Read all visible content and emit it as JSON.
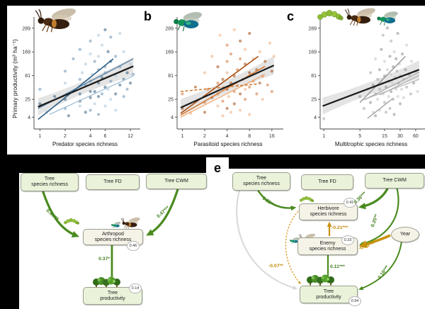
{
  "figure": {
    "y_axis_label": "Primary productivity (m³ ha⁻¹)",
    "panels": {
      "b": "b",
      "c": "c",
      "e": "e"
    }
  },
  "colors": {
    "green_path": "#4a8b1f",
    "gold_path": "#c8920a",
    "gray_path": "#d8d8d8",
    "black_line": "#1a1a1a"
  },
  "chart_data": [
    {
      "type": "scatter",
      "panel": "a",
      "xlabel": "Predator species richness",
      "ylabel": "Primary productivity (m³ ha⁻¹)",
      "x_scale": "log2",
      "y_scale": "sqrt",
      "x_ticks": [
        1,
        2,
        4,
        6,
        12
      ],
      "y_ticks": [
        4,
        25,
        81,
        169,
        289
      ],
      "x_domain": [
        0.85,
        14
      ],
      "y_domain": [
        0,
        330
      ],
      "point_colors": [
        "#2f5d80",
        "#6b92b2",
        "#a9c4d8"
      ],
      "ci_band": {
        "x1": 0.95,
        "y1": 14,
        "x2": 13,
        "y2": 112,
        "color": "#c9c9c9"
      },
      "lines": [
        {
          "x1": 1.3,
          "y1": 6,
          "x2": 13,
          "y2": 80,
          "color": "#a3c0d6",
          "w": 1.3
        },
        {
          "x1": 0.95,
          "y1": 12,
          "x2": 13,
          "y2": 140,
          "color": "#5e88ab",
          "w": 1.5
        },
        {
          "x1": 0.95,
          "y1": 2.6,
          "x2": 7.5,
          "y2": 140,
          "color": "#2d5f86",
          "w": 1.6
        },
        {
          "x1": 0.95,
          "y1": 14,
          "x2": 13,
          "y2": 112,
          "color": "#1a1a1a",
          "w": 2.2
        }
      ],
      "points": [
        [
          1,
          18,
          0
        ],
        [
          1,
          45,
          1
        ],
        [
          1.2,
          8,
          2
        ],
        [
          1.5,
          30,
          0
        ],
        [
          2,
          12,
          1
        ],
        [
          2,
          60,
          2
        ],
        [
          2,
          25,
          0
        ],
        [
          2,
          95,
          1
        ],
        [
          2.2,
          5,
          0
        ],
        [
          2.5,
          40,
          2
        ],
        [
          2.5,
          140,
          1
        ],
        [
          3,
          22,
          0
        ],
        [
          3,
          70,
          1
        ],
        [
          3,
          15,
          2
        ],
        [
          3,
          180,
          1
        ],
        [
          3,
          35,
          0
        ],
        [
          3.2,
          90,
          2
        ],
        [
          3.5,
          55,
          1
        ],
        [
          3.5,
          8,
          0
        ],
        [
          3.5,
          120,
          2
        ],
        [
          4,
          28,
          0
        ],
        [
          4,
          65,
          1
        ],
        [
          4,
          160,
          2
        ],
        [
          4,
          10,
          1
        ],
        [
          4,
          40,
          0
        ],
        [
          4,
          220,
          1
        ],
        [
          4.2,
          85,
          2
        ],
        [
          4.5,
          40,
          0
        ],
        [
          4.5,
          130,
          1
        ],
        [
          4.5,
          18,
          2
        ],
        [
          5,
          60,
          0
        ],
        [
          5,
          100,
          1
        ],
        [
          5,
          250,
          2
        ],
        [
          5,
          30,
          0
        ],
        [
          5,
          6,
          1
        ],
        [
          5,
          150,
          2
        ],
        [
          5.5,
          75,
          0
        ],
        [
          5.5,
          35,
          1
        ],
        [
          5.5,
          200,
          2
        ],
        [
          6,
          50,
          0
        ],
        [
          6,
          110,
          1
        ],
        [
          6,
          15,
          2
        ],
        [
          6,
          280,
          0
        ],
        [
          6,
          90,
          1
        ],
        [
          6.5,
          45,
          2
        ],
        [
          6.5,
          170,
          0
        ],
        [
          7,
          65,
          1
        ],
        [
          7,
          25,
          2
        ],
        [
          7,
          130,
          0
        ],
        [
          7,
          240,
          1
        ],
        [
          8,
          80,
          2
        ],
        [
          8,
          35,
          0
        ],
        [
          8,
          150,
          1
        ],
        [
          8,
          10,
          2
        ],
        [
          9,
          55,
          0
        ],
        [
          9,
          110,
          1
        ],
        [
          9,
          260,
          2
        ],
        [
          10,
          70,
          0
        ],
        [
          10,
          30,
          1
        ],
        [
          10,
          170,
          2
        ],
        [
          11,
          90,
          0
        ],
        [
          11,
          45,
          1
        ],
        [
          12,
          120,
          2
        ],
        [
          12,
          60,
          0
        ],
        [
          13,
          85,
          1
        ]
      ]
    },
    {
      "type": "scatter",
      "panel": "b",
      "xlabel": "Parasitoid species richness",
      "ylabel": "Primary productivity (m³ ha⁻¹)",
      "x_scale": "log2",
      "y_scale": "sqrt",
      "x_ticks": [
        1,
        2,
        4,
        8,
        16
      ],
      "y_ticks": [
        4,
        25,
        81,
        169,
        289
      ],
      "x_domain": [
        0.85,
        20
      ],
      "y_domain": [
        0,
        330
      ],
      "point_colors": [
        "#a3490e",
        "#d2773b",
        "#eeab7e"
      ],
      "ci_band": {
        "x1": 0.95,
        "y1": 13,
        "x2": 17,
        "y2": 115,
        "color": "#c9c9c9"
      },
      "lines": [
        {
          "x1": 0.95,
          "y1": 4,
          "x2": 13,
          "y2": 85,
          "color": "#efa873",
          "w": 1.3
        },
        {
          "x1": 0.95,
          "y1": 5.5,
          "x2": 13,
          "y2": 112,
          "color": "#d8772f",
          "w": 1.5
        },
        {
          "x1": 0.95,
          "y1": 7,
          "x2": 10.5,
          "y2": 150,
          "color": "#a84e10",
          "w": 1.6
        },
        {
          "x1": 0.95,
          "y1": 40,
          "x2": 10.5,
          "y2": 58,
          "color": "#cc6f1f",
          "w": 1.4,
          "dash": true
        },
        {
          "x1": 0.95,
          "y1": 13,
          "x2": 17,
          "y2": 115,
          "color": "#1a1a1a",
          "w": 2.2
        }
      ],
      "points": [
        [
          1,
          12,
          0
        ],
        [
          1,
          35,
          1
        ],
        [
          1.3,
          7,
          2
        ],
        [
          1.5,
          50,
          0
        ],
        [
          2,
          20,
          1
        ],
        [
          2,
          90,
          2
        ],
        [
          2,
          8,
          0
        ],
        [
          2.2,
          45,
          1
        ],
        [
          2.5,
          150,
          2
        ],
        [
          2.5,
          28,
          0
        ],
        [
          3,
          60,
          1
        ],
        [
          3,
          15,
          2
        ],
        [
          3,
          110,
          0
        ],
        [
          3,
          35,
          1
        ],
        [
          3.2,
          250,
          2
        ],
        [
          3.5,
          70,
          0
        ],
        [
          3.5,
          22,
          1
        ],
        [
          3.5,
          5,
          2
        ],
        [
          4,
          45,
          0
        ],
        [
          4,
          130,
          1
        ],
        [
          4,
          90,
          2
        ],
        [
          4,
          12,
          0
        ],
        [
          4,
          200,
          1
        ],
        [
          4.2,
          30,
          2
        ],
        [
          4.5,
          60,
          0
        ],
        [
          4.5,
          160,
          1
        ],
        [
          4.5,
          8,
          2
        ],
        [
          5,
          80,
          0
        ],
        [
          5,
          40,
          1
        ],
        [
          5,
          280,
          2
        ],
        [
          5,
          18,
          0
        ],
        [
          5.5,
          100,
          1
        ],
        [
          5.5,
          55,
          2
        ],
        [
          6,
          35,
          0
        ],
        [
          6,
          140,
          1
        ],
        [
          6,
          10,
          2
        ],
        [
          6,
          220,
          0
        ],
        [
          6.5,
          70,
          1
        ],
        [
          7,
          45,
          2
        ],
        [
          7,
          120,
          0
        ],
        [
          7,
          25,
          1
        ],
        [
          7,
          180,
          2
        ],
        [
          8,
          90,
          0
        ],
        [
          8,
          50,
          1
        ],
        [
          8,
          6,
          2
        ],
        [
          8,
          260,
          0
        ],
        [
          9,
          65,
          1
        ],
        [
          9,
          140,
          2
        ],
        [
          10,
          100,
          0
        ],
        [
          10,
          35,
          1
        ],
        [
          11,
          170,
          2
        ],
        [
          11,
          60,
          0
        ],
        [
          12,
          80,
          1
        ],
        [
          12,
          25,
          2
        ],
        [
          13,
          130,
          0
        ],
        [
          14,
          55,
          1
        ],
        [
          15,
          210,
          2
        ],
        [
          16,
          95,
          0
        ],
        [
          16,
          40,
          1
        ],
        [
          17,
          150,
          2
        ]
      ]
    },
    {
      "type": "scatter",
      "panel": "c",
      "xlabel": "Multitrophic species richness",
      "ylabel": "Primary productivity (m³ ha⁻¹)",
      "x_scale": "log2",
      "y_scale": "sqrt",
      "x_ticks": [
        1,
        5,
        15,
        30,
        60
      ],
      "y_ticks": [
        4,
        25,
        81,
        169,
        289
      ],
      "x_domain": [
        0.85,
        80
      ],
      "y_domain": [
        0,
        330
      ],
      "point_colors": [
        "#8d8d8d",
        "#a6a6a6",
        "#c3c3c3"
      ],
      "ci_band": {
        "x1": 0.95,
        "y1": 15,
        "x2": 70,
        "y2": 100,
        "color": "#c9c9c9"
      },
      "lines": [
        {
          "x1": 6.5,
          "y1": 26,
          "x2": 70,
          "y2": 70,
          "color": "#bdbdbd",
          "w": 1.3
        },
        {
          "x1": 12,
          "y1": 33,
          "x2": 70,
          "y2": 82,
          "color": "#b3b3b3",
          "w": 1.3
        },
        {
          "x1": 6,
          "y1": 24,
          "x2": 70,
          "y2": 92,
          "color": "#aaaaaa",
          "w": 1.4
        },
        {
          "x1": 5,
          "y1": 20,
          "x2": 38,
          "y2": 150,
          "color": "#9a9a9a",
          "w": 1.5
        },
        {
          "x1": 7,
          "y1": 3.2,
          "x2": 22,
          "y2": 27,
          "color": "#a5a5a5",
          "w": 1.4
        },
        {
          "x1": 0.95,
          "y1": 15,
          "x2": 70,
          "y2": 100,
          "color": "#1a1a1a",
          "w": 2.2
        }
      ],
      "points": [
        [
          1,
          3,
          1
        ],
        [
          5,
          30,
          0
        ],
        [
          6,
          12,
          1
        ],
        [
          7,
          45,
          2
        ],
        [
          8,
          20,
          0
        ],
        [
          8,
          90,
          1
        ],
        [
          9,
          8,
          2
        ],
        [
          9,
          55,
          0
        ],
        [
          10,
          35,
          1
        ],
        [
          10,
          140,
          2
        ],
        [
          10,
          5,
          0
        ],
        [
          11,
          70,
          1
        ],
        [
          11,
          25,
          2
        ],
        [
          12,
          100,
          0
        ],
        [
          12,
          45,
          1
        ],
        [
          12,
          10,
          2
        ],
        [
          13,
          180,
          0
        ],
        [
          13,
          60,
          1
        ],
        [
          14,
          35,
          2
        ],
        [
          14,
          250,
          1
        ],
        [
          15,
          80,
          0
        ],
        [
          15,
          20,
          1
        ],
        [
          15,
          130,
          2
        ],
        [
          16,
          50,
          0
        ],
        [
          16,
          8,
          1
        ],
        [
          17,
          100,
          2
        ],
        [
          17,
          290,
          0
        ],
        [
          18,
          65,
          1
        ],
        [
          18,
          30,
          2
        ],
        [
          19,
          150,
          0
        ],
        [
          19,
          12,
          1
        ],
        [
          20,
          85,
          2
        ],
        [
          20,
          40,
          0
        ],
        [
          20,
          220,
          1
        ],
        [
          21,
          60,
          2
        ],
        [
          22,
          110,
          0
        ],
        [
          22,
          25,
          1
        ],
        [
          23,
          170,
          2
        ],
        [
          23,
          6,
          0
        ],
        [
          24,
          75,
          1
        ],
        [
          25,
          45,
          2
        ],
        [
          25,
          140,
          0
        ],
        [
          26,
          95,
          1
        ],
        [
          27,
          30,
          2
        ],
        [
          27,
          260,
          0
        ],
        [
          28,
          60,
          1
        ],
        [
          29,
          120,
          2
        ],
        [
          30,
          18,
          0
        ],
        [
          30,
          80,
          1
        ],
        [
          32,
          45,
          2
        ],
        [
          33,
          160,
          0
        ],
        [
          35,
          70,
          1
        ],
        [
          35,
          28,
          2
        ],
        [
          38,
          100,
          0
        ],
        [
          40,
          50,
          1
        ],
        [
          40,
          200,
          2
        ],
        [
          45,
          85,
          0
        ],
        [
          48,
          35,
          1
        ],
        [
          50,
          130,
          2
        ],
        [
          55,
          60,
          0
        ],
        [
          60,
          95,
          1
        ],
        [
          65,
          40,
          2
        ]
      ]
    }
  ],
  "sem_d": {
    "nodes": {
      "tree_species_richness": "Tree\nspecies richness",
      "tree_fd": "Tree FD",
      "tree_cwm": "Tree CWM",
      "arthropod": "Arthropod\nspecies richness",
      "productivity": "Tree\nproductivity"
    },
    "r2": {
      "arthropod": "0.46",
      "productivity": "0.14"
    },
    "paths": {
      "tsr_arthropod": "0.45***",
      "cwm_arthropod": "0.47***",
      "arthropod_productivity": "0.37*"
    }
  },
  "sem_e": {
    "nodes": {
      "tree_species_richness": "Tree\nspecies richness",
      "tree_fd": "Tree FD",
      "tree_cwm": "Tree CWM",
      "herbivore": "Herbivore\nspecies richness",
      "enemy": "Enemy\nspecies richness",
      "productivity": "Tree\nproductivity",
      "year": "Year"
    },
    "r2": {
      "herbivore": "0.41",
      "enemy": "0.33",
      "productivity": "0.94"
    },
    "paths": {
      "tsr_herbivore": "0.29***",
      "cwm_herbivore": "0.36***",
      "cwm_enemy": "0.25**",
      "enemy_herbivore": "-0.21***",
      "year_enemy": "-0.35***",
      "enemy_productivity": "0.11***",
      "year_productivity": "0.16***",
      "herbivore_productivity": "-0.07**"
    }
  }
}
